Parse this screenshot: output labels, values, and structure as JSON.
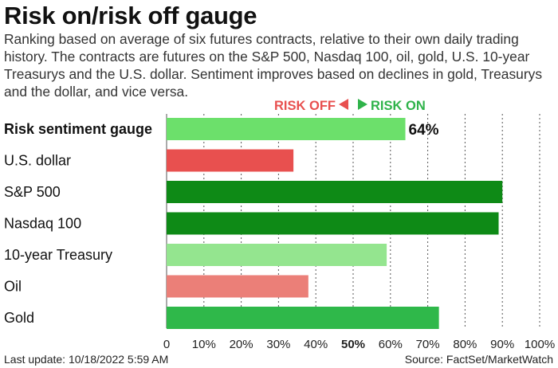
{
  "title": "Risk on/risk off gauge",
  "subtitle": "Ranking based on average of six futures contracts, relative to their own daily trading history. The contracts are futures on the S&P 500, Nasdaq 100, oil, gold, U.S. 10-year Treasurys and the U.S. dollar. Sentiment improves based on declines in gold, Treasurys and the dollar, and vice versa.",
  "direction": {
    "risk_off": "RISK OFF",
    "risk_on": "RISK ON",
    "risk_off_color": "#e8504f",
    "risk_on_color": "#2fb34a"
  },
  "footer": {
    "last_update": "Last update: 10/18/2022 5:59 AM",
    "source": "Source: FactSet/MarketWatch"
  },
  "chart_data": {
    "type": "bar",
    "orientation": "horizontal",
    "categories": [
      "Risk sentiment gauge",
      "U.S. dollar",
      "S&P 500",
      "Nasdaq 100",
      "10-year Treasury",
      "Oil",
      "Gold"
    ],
    "values": [
      64,
      34,
      90,
      89,
      59,
      38,
      73
    ],
    "colors": [
      "#6ce06b",
      "#e8504f",
      "#0e8a16",
      "#0e8a16",
      "#94e58f",
      "#eb7f78",
      "#2fb84a"
    ],
    "value_labels": [
      "64%",
      "",
      "",
      "",
      "",
      "",
      ""
    ],
    "xlim": [
      0,
      100
    ],
    "x_ticks": [
      0,
      10,
      20,
      30,
      40,
      50,
      60,
      70,
      80,
      90,
      100
    ],
    "x_tick_labels": [
      "0",
      "10%",
      "20%",
      "30%",
      "40%",
      "50%",
      "60%",
      "70%",
      "80%",
      "90%",
      "100%"
    ],
    "bold_tick": "50%",
    "bold_category": "Risk sentiment gauge",
    "grid": true,
    "title": "Risk on/risk off gauge",
    "xlabel": "",
    "ylabel": ""
  }
}
